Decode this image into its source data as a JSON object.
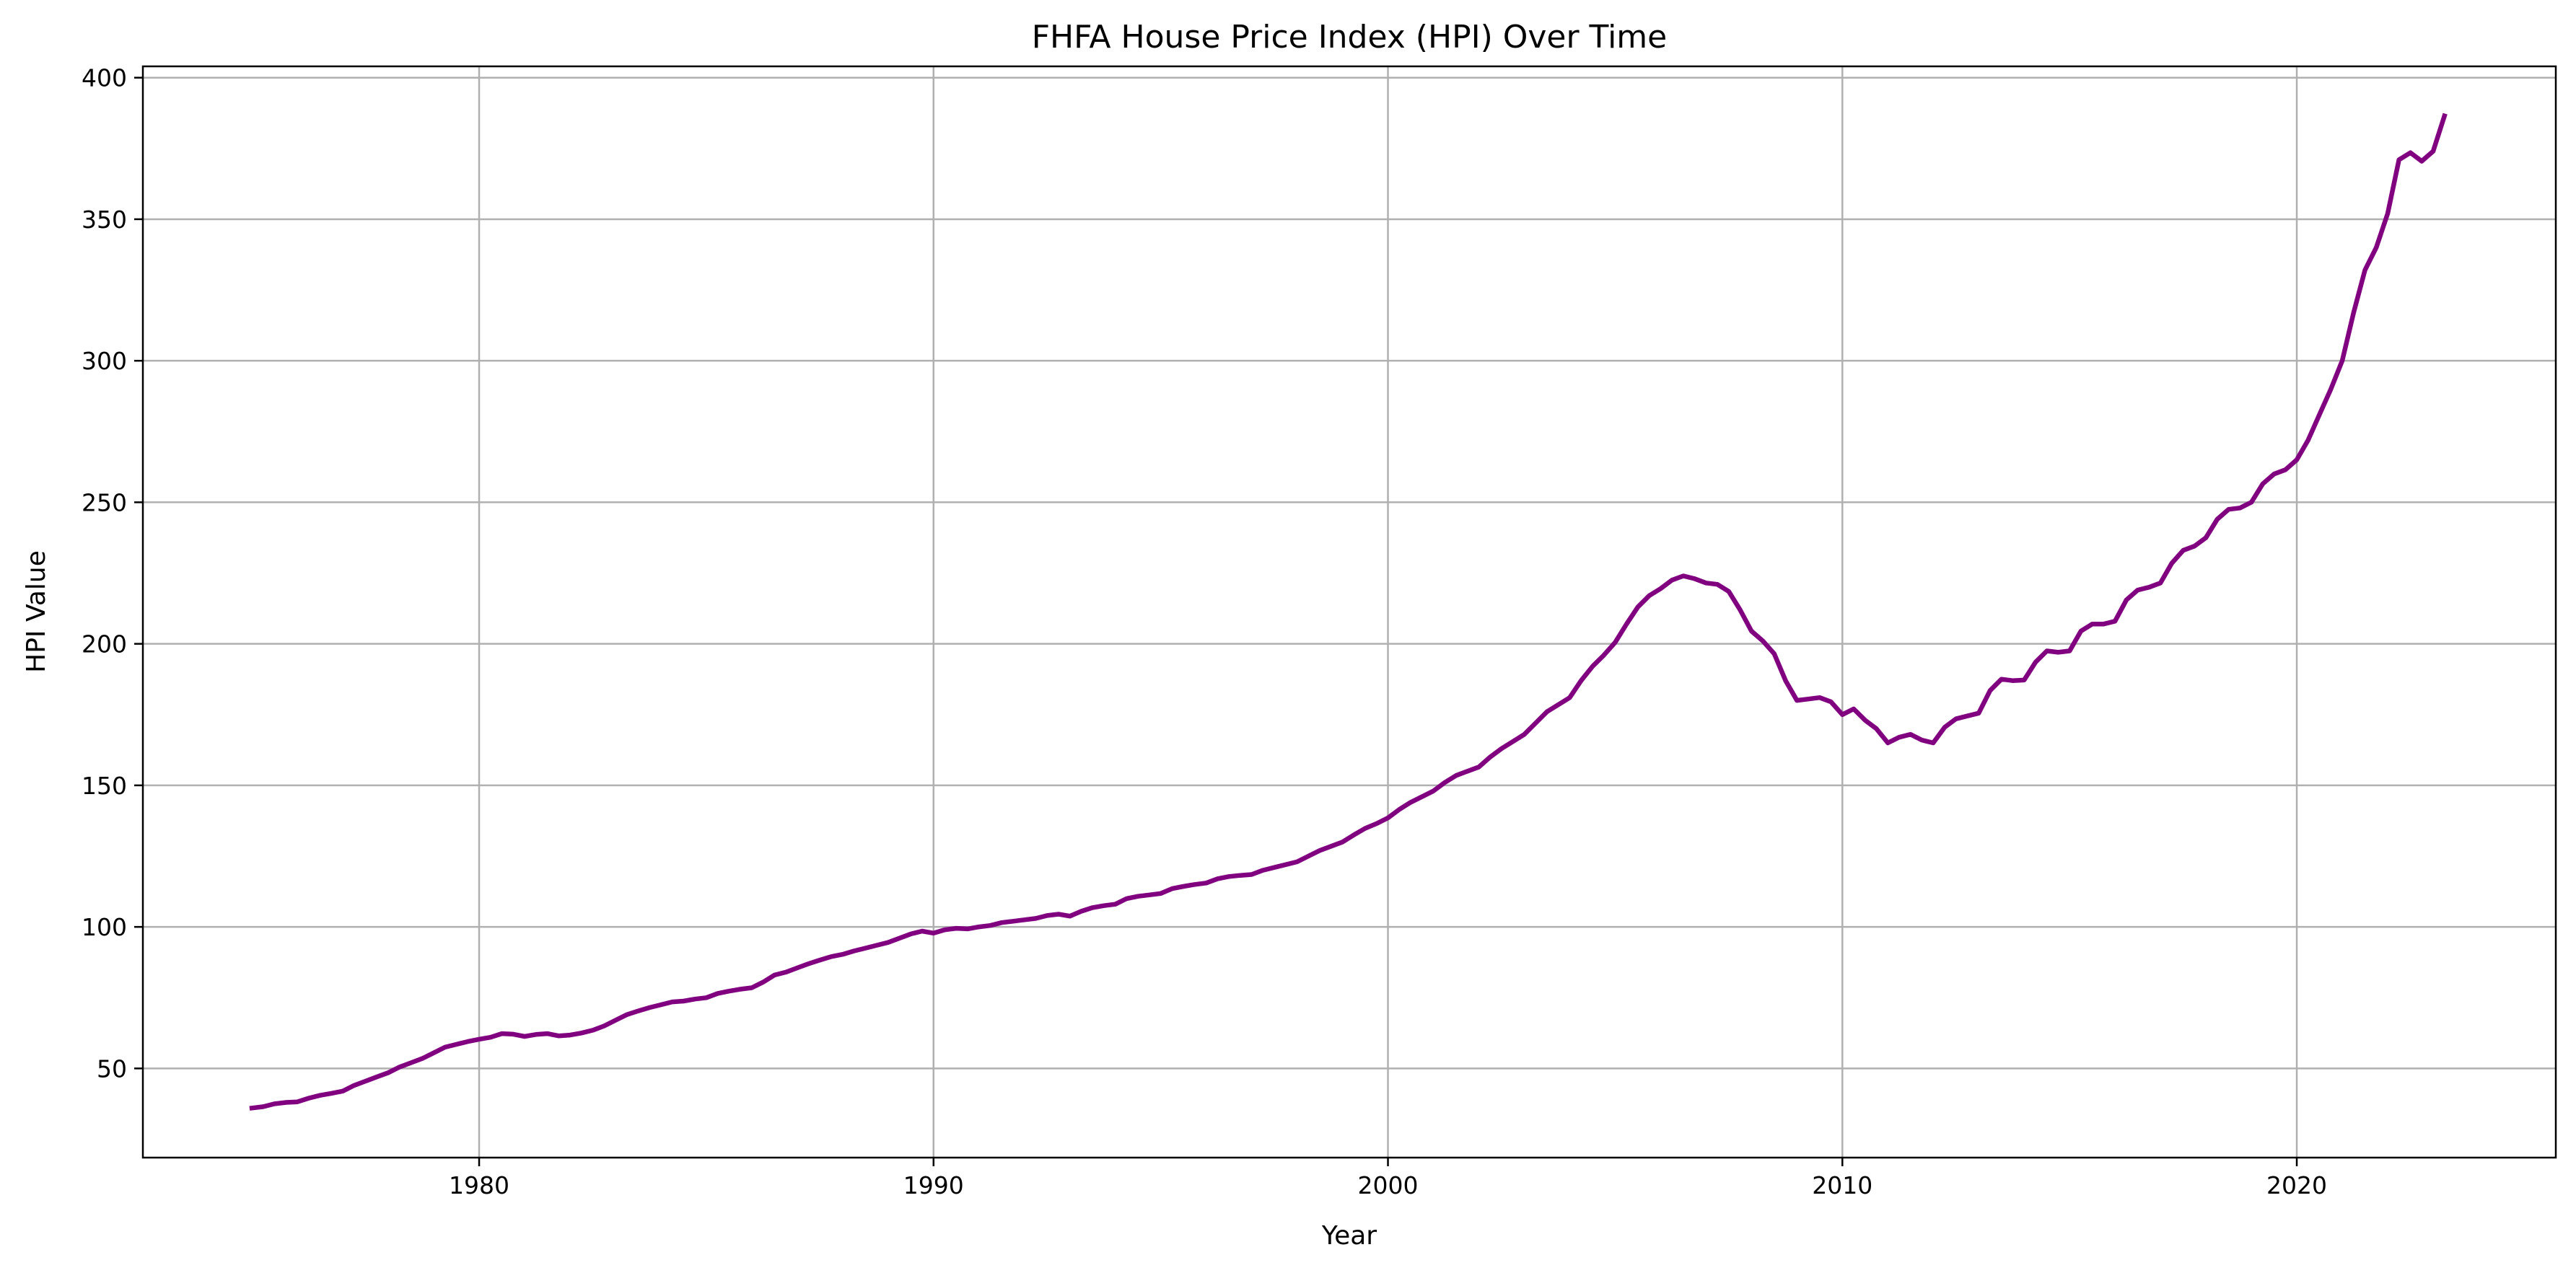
{
  "chart_data": {
    "type": "line",
    "title": "FHFA House Price Index (HPI) Over Time",
    "xlabel": "Year",
    "ylabel": "HPI Value",
    "xlim": [
      1972.6,
      2025.7
    ],
    "ylim": [
      18.5,
      404
    ],
    "x_ticks": [
      1980,
      1990,
      2000,
      2010,
      2020
    ],
    "y_ticks": [
      50,
      100,
      150,
      200,
      250,
      300,
      350,
      400
    ],
    "grid": true,
    "colors": {
      "series": "#800080"
    },
    "series": [
      {
        "x": [
          1975.0,
          1975.25,
          1975.5,
          1975.75,
          1976.0,
          1976.25,
          1976.5,
          1976.75,
          1977.0,
          1977.25,
          1977.5,
          1977.75,
          1978.0,
          1978.25,
          1978.5,
          1978.75,
          1979.0,
          1979.25,
          1979.5,
          1979.75,
          1980.0,
          1980.25,
          1980.5,
          1980.75,
          1981.0,
          1981.25,
          1981.5,
          1981.75,
          1982.0,
          1982.25,
          1982.5,
          1982.75,
          1983.0,
          1983.25,
          1983.5,
          1983.75,
          1984.0,
          1984.25,
          1984.5,
          1984.75,
          1985.0,
          1985.25,
          1985.5,
          1985.75,
          1986.0,
          1986.25,
          1986.5,
          1986.75,
          1987.0,
          1987.25,
          1987.5,
          1987.75,
          1988.0,
          1988.25,
          1988.5,
          1988.75,
          1989.0,
          1989.25,
          1989.5,
          1989.75,
          1990.0,
          1990.25,
          1990.5,
          1990.75,
          1991.0,
          1991.25,
          1991.5,
          1991.75,
          1992.0,
          1992.25,
          1992.5,
          1992.75,
          1993.0,
          1993.25,
          1993.5,
          1993.75,
          1994.0,
          1994.25,
          1994.5,
          1994.75,
          1995.0,
          1995.25,
          1995.5,
          1995.75,
          1996.0,
          1996.25,
          1996.5,
          1996.75,
          1997.0,
          1997.25,
          1997.5,
          1997.75,
          1998.0,
          1998.25,
          1998.5,
          1998.75,
          1999.0,
          1999.25,
          1999.5,
          1999.75,
          2000.0,
          2000.25,
          2000.5,
          2000.75,
          2001.0,
          2001.25,
          2001.5,
          2001.75,
          2002.0,
          2002.25,
          2002.5,
          2002.75,
          2003.0,
          2003.25,
          2003.5,
          2003.75,
          2004.0,
          2004.25,
          2004.5,
          2004.75,
          2005.0,
          2005.25,
          2005.5,
          2005.75,
          2006.0,
          2006.25,
          2006.5,
          2006.75,
          2007.0,
          2007.25,
          2007.5,
          2007.75,
          2008.0,
          2008.25,
          2008.5,
          2008.75,
          2009.0,
          2009.25,
          2009.5,
          2009.75,
          2010.0,
          2010.25,
          2010.5,
          2010.75,
          2011.0,
          2011.25,
          2011.5,
          2011.75,
          2012.0,
          2012.25,
          2012.5,
          2012.75,
          2013.0,
          2013.25,
          2013.5,
          2013.75,
          2014.0,
          2014.25,
          2014.5,
          2014.75,
          2015.0,
          2015.25,
          2015.5,
          2015.75,
          2016.0,
          2016.25,
          2016.5,
          2016.75,
          2017.0,
          2017.25,
          2017.5,
          2017.75,
          2018.0,
          2018.25,
          2018.5,
          2018.75,
          2019.0,
          2019.25,
          2019.5,
          2019.75,
          2020.0,
          2020.25,
          2020.5,
          2020.75,
          2021.0,
          2021.25,
          2021.5,
          2021.75,
          2022.0,
          2022.25,
          2022.5,
          2022.75,
          2023.0,
          2023.25
        ],
        "values": [
          36,
          36.5,
          37.5,
          38,
          38.2,
          39.5,
          40.5,
          41.2,
          42,
          44,
          45.5,
          47,
          48.5,
          50.5,
          52,
          53.5,
          55.5,
          57.5,
          58.5,
          59.5,
          60.3,
          61,
          62.3,
          62.1,
          61.3,
          62,
          62.3,
          61.5,
          61.8,
          62.5,
          63.5,
          65,
          67,
          69,
          70.3,
          71.5,
          72.5,
          73.5,
          73.8,
          74.5,
          75,
          76.5,
          77.3,
          78,
          78.5,
          80.5,
          83,
          84,
          85.5,
          87,
          88.3,
          89.5,
          90.3,
          91.5,
          92.5,
          93.5,
          94.5,
          96,
          97.5,
          98.5,
          97.8,
          99,
          99.5,
          99.3,
          100,
          100.5,
          101.5,
          102,
          102.5,
          103,
          104,
          104.5,
          103.8,
          105.5,
          106.8,
          107.5,
          108,
          110,
          110.8,
          111.3,
          111.8,
          113.5,
          114.3,
          115,
          115.5,
          117,
          117.8,
          118.2,
          118.5,
          120,
          121,
          122,
          123,
          125,
          127,
          128.5,
          130,
          132.5,
          134.8,
          136.5,
          138.5,
          141.5,
          144,
          146,
          148,
          151,
          153.5,
          155,
          156.5,
          160,
          163,
          165.5,
          168,
          172,
          176,
          178.5,
          181,
          187,
          192,
          196,
          200.5,
          207,
          213,
          217,
          219.5,
          222.5,
          224,
          223,
          221.5,
          221,
          218.5,
          212,
          204.5,
          201,
          196.5,
          187,
          180,
          180.5,
          181,
          179.5,
          175,
          177,
          173,
          170,
          165,
          167,
          168,
          166,
          165,
          170.5,
          173.5,
          174.5,
          175.5,
          183.5,
          187.5,
          187,
          187.2,
          193.5,
          197.5,
          197,
          197.5,
          204.5,
          207,
          207,
          208,
          215.5,
          219,
          220,
          221.5,
          228.5,
          233,
          234.5,
          237.5,
          244,
          247.5,
          248,
          250,
          256.5,
          260,
          261.5,
          265,
          272,
          281,
          290,
          300,
          317,
          332,
          340,
          352,
          371,
          373.5,
          370.5,
          374,
          386.5
        ]
      }
    ]
  }
}
